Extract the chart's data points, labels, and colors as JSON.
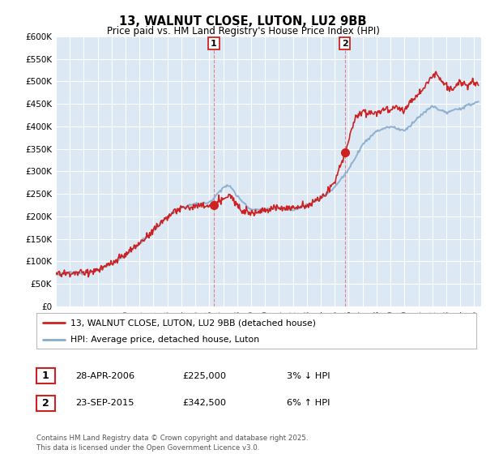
{
  "title": "13, WALNUT CLOSE, LUTON, LU2 9BB",
  "subtitle": "Price paid vs. HM Land Registry's House Price Index (HPI)",
  "ylim": [
    0,
    600000
  ],
  "yticks": [
    0,
    50000,
    100000,
    150000,
    200000,
    250000,
    300000,
    350000,
    400000,
    450000,
    500000,
    550000,
    600000
  ],
  "ytick_labels": [
    "£0",
    "£50K",
    "£100K",
    "£150K",
    "£200K",
    "£250K",
    "£300K",
    "£350K",
    "£400K",
    "£450K",
    "£500K",
    "£550K",
    "£600K"
  ],
  "xlim_start": 1995.0,
  "xlim_end": 2025.5,
  "fig_bg": "#ffffff",
  "plot_bg": "#dce9f5",
  "line_color_red": "#cc2222",
  "line_color_blue": "#88aacc",
  "transaction1_x": 2006.32,
  "transaction1_y": 225000,
  "transaction2_x": 2015.73,
  "transaction2_y": 342500,
  "transaction1_label": "28-APR-2006",
  "transaction1_price": "£225,000",
  "transaction1_hpi": "3% ↓ HPI",
  "transaction2_label": "23-SEP-2015",
  "transaction2_price": "£342,500",
  "transaction2_hpi": "6% ↑ HPI",
  "legend_line1": "13, WALNUT CLOSE, LUTON, LU2 9BB (detached house)",
  "legend_line2": "HPI: Average price, detached house, Luton",
  "footer": "Contains HM Land Registry data © Crown copyright and database right 2025.\nThis data is licensed under the Open Government Licence v3.0."
}
